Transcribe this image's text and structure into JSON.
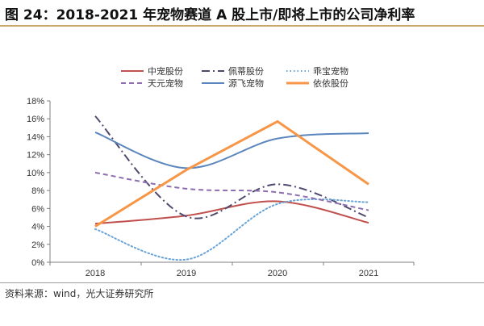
{
  "title": "图 24：2018-2021 年宠物赛道 A 股上市/即将上市的公司净利率",
  "source": "资料来源：wind，光大证券研究所",
  "chart_data": {
    "type": "line",
    "x": [
      "2018",
      "2019",
      "2020",
      "2021"
    ],
    "y_ticks": [
      "0%",
      "2%",
      "4%",
      "6%",
      "8%",
      "10%",
      "12%",
      "14%",
      "16%",
      "18%"
    ],
    "ylim": [
      0,
      18
    ],
    "grid": false,
    "legend_position": "top",
    "series": [
      {
        "name": "中宠股份",
        "values": [
          4.3,
          5.2,
          6.8,
          4.4
        ],
        "color": "#c0504d",
        "style": "solid",
        "width": 2
      },
      {
        "name": "佩蒂股份",
        "values": [
          16.3,
          5.1,
          8.7,
          5.0
        ],
        "color": "#4e4a6e",
        "style": "dashdot",
        "width": 2
      },
      {
        "name": "乖宝宠物",
        "values": [
          3.7,
          0.3,
          6.5,
          6.7
        ],
        "color": "#6aa3d6",
        "style": "dotted",
        "width": 2
      },
      {
        "name": "天元宠物",
        "values": [
          10.0,
          8.2,
          7.8,
          5.8
        ],
        "color": "#8e6db0",
        "style": "dashed",
        "width": 2
      },
      {
        "name": "源飞宠物",
        "values": [
          14.5,
          10.5,
          13.8,
          14.4
        ],
        "color": "#5b85bd",
        "style": "solid",
        "width": 2
      },
      {
        "name": "依依股份",
        "values": [
          4.0,
          10.3,
          15.7,
          8.7
        ],
        "color": "#f79646",
        "style": "solid",
        "width": 3,
        "smooth": false
      }
    ]
  }
}
